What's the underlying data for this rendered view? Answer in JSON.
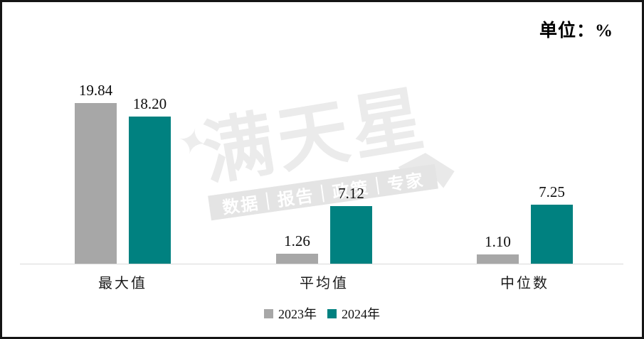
{
  "frame": {
    "unit_label": "单位：%"
  },
  "chart_data": {
    "type": "bar",
    "title": "",
    "unit_label": "单位：%",
    "categories": [
      "最大值",
      "平均值",
      "中位数"
    ],
    "series": [
      {
        "name": "2023年",
        "color": "#a7a7a7",
        "values": [
          19.84,
          1.26,
          1.1
        ]
      },
      {
        "name": "2024年",
        "color": "#008180",
        "values": [
          18.2,
          7.12,
          7.25
        ]
      }
    ],
    "value_labels_shown": true,
    "value_label_decimals": 2,
    "ylim": [
      0,
      21
    ],
    "axis_color": "#d9d9d9",
    "grid": false,
    "legend_position": "bottom-center"
  },
  "watermark": {
    "title": "满天星",
    "subtitle": "数据｜报告｜政策｜专家",
    "sparkle_icon": "✦"
  }
}
